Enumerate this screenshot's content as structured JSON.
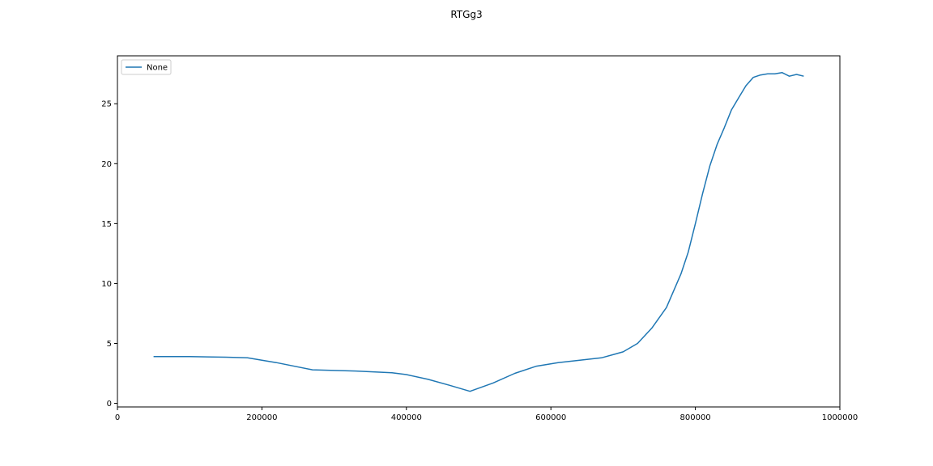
{
  "chart_data": {
    "type": "line",
    "title": "RTGg3",
    "xlabel": "",
    "ylabel": "",
    "xlim": [
      0,
      1000000
    ],
    "ylim": [
      -0.3,
      29
    ],
    "x_ticks": [
      0,
      200000,
      400000,
      600000,
      800000,
      1000000
    ],
    "x_tick_labels": [
      "0",
      "200000",
      "400000",
      "600000",
      "800000",
      "1000000"
    ],
    "y_ticks": [
      0,
      5,
      10,
      15,
      20,
      25
    ],
    "y_tick_labels": [
      "0",
      "5",
      "10",
      "15",
      "20",
      "25"
    ],
    "grid": false,
    "legend": {
      "position": "top-left",
      "entries": [
        "None"
      ]
    },
    "series": [
      {
        "name": "None",
        "color": "#1f77b4",
        "x": [
          50000,
          100000,
          150000,
          180000,
          220000,
          270000,
          330000,
          380000,
          400000,
          430000,
          460000,
          488000,
          520000,
          550000,
          580000,
          610000,
          640000,
          670000,
          700000,
          720000,
          740000,
          760000,
          780000,
          790000,
          800000,
          810000,
          820000,
          830000,
          840000,
          850000,
          860000,
          870000,
          880000,
          890000,
          900000,
          910000,
          920000,
          930000,
          940000,
          950000
        ],
        "y": [
          3.9,
          3.9,
          3.85,
          3.8,
          3.4,
          2.8,
          2.7,
          2.55,
          2.4,
          2.0,
          1.5,
          1.0,
          1.7,
          2.5,
          3.1,
          3.4,
          3.6,
          3.8,
          4.3,
          5.0,
          6.3,
          8.0,
          10.8,
          12.6,
          15.0,
          17.5,
          19.8,
          21.6,
          23.0,
          24.5,
          25.5,
          26.5,
          27.2,
          27.4,
          27.5,
          27.5,
          27.6,
          27.3,
          27.45,
          27.3
        ]
      }
    ]
  }
}
